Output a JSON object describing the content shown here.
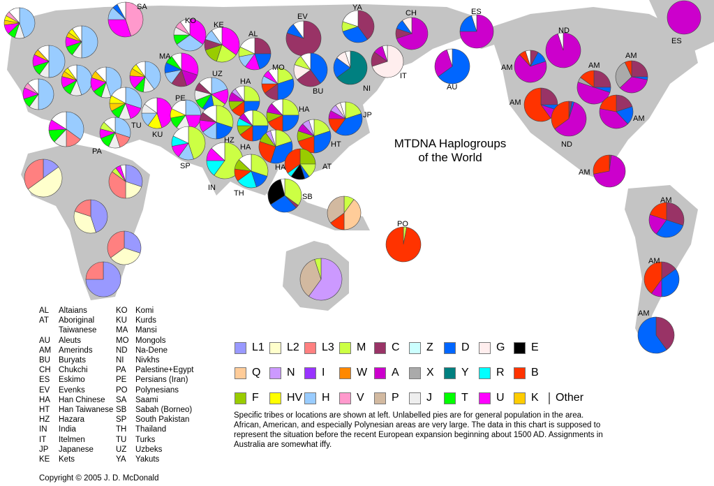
{
  "title_line1": "MTDNA Haplogroups",
  "title_line2": "of the World",
  "legend": [
    [
      {
        "code": "L1",
        "color": "#9999ff"
      },
      {
        "code": "L2",
        "color": "#ffffcc"
      },
      {
        "code": "L3",
        "color": "#ff8080"
      },
      {
        "code": "M",
        "color": "#ccff44"
      },
      {
        "code": "C",
        "color": "#993366"
      },
      {
        "code": "Z",
        "color": "#ccffff"
      },
      {
        "code": "D",
        "color": "#0066ff"
      },
      {
        "code": "G",
        "color": "#ffeeee"
      },
      {
        "code": "E",
        "color": "#000000"
      }
    ],
    [
      {
        "code": "Q",
        "color": "#ffcc99"
      },
      {
        "code": "N",
        "color": "#cc99ff"
      },
      {
        "code": "I",
        "color": "#9933ff"
      },
      {
        "code": "W",
        "color": "#ff8800"
      },
      {
        "code": "A",
        "color": "#cc00cc"
      },
      {
        "code": "X",
        "color": "#aaaaaa"
      },
      {
        "code": "Y",
        "color": "#008080"
      },
      {
        "code": "R",
        "color": "#00ffff"
      },
      {
        "code": "B",
        "color": "#ff3300"
      }
    ],
    [
      {
        "code": "F",
        "color": "#99cc00"
      },
      {
        "code": "HV",
        "color": "#ffff00"
      },
      {
        "code": "H",
        "color": "#99ccff"
      },
      {
        "code": "V",
        "color": "#ff99cc"
      },
      {
        "code": "P",
        "color": "#d2b9a0"
      },
      {
        "code": "J",
        "color": "#eeeeee"
      },
      {
        "code": "T",
        "color": "#00ff00"
      },
      {
        "code": "U",
        "color": "#ff00ff"
      },
      {
        "code": "K",
        "color": "#ffcc00"
      },
      {
        "code": "Other",
        "color": "#ffffff"
      }
    ]
  ],
  "abbreviations_col1": [
    [
      "AL",
      "Altaians"
    ],
    [
      "AT",
      "Aboriginal"
    ],
    [
      "",
      "Taiwanese"
    ],
    [
      "AU",
      "Aleuts"
    ],
    [
      "AM",
      "Amerinds"
    ],
    [
      "BU",
      "Buryats"
    ],
    [
      "CH",
      "Chukchi"
    ],
    [
      "ES",
      "Eskimo"
    ],
    [
      "EV",
      "Evenks"
    ],
    [
      "HA",
      "Han Chinese"
    ],
    [
      "HT",
      "Han Taiwanese"
    ],
    [
      "HZ",
      "Hazara"
    ],
    [
      "IN",
      "India"
    ],
    [
      "IT",
      "Itelmen"
    ],
    [
      "JP",
      "Japanese"
    ],
    [
      "KE",
      "Kets"
    ]
  ],
  "abbreviations_col2": [
    [
      "KO",
      "Komi"
    ],
    [
      "KU",
      "Kurds"
    ],
    [
      "MA",
      "Mansi"
    ],
    [
      "MO",
      "Mongols"
    ],
    [
      "ND",
      "Na-Dene"
    ],
    [
      "NI",
      "Nivkhs"
    ],
    [
      "PA",
      "Palestine+Egypt"
    ],
    [
      "PE",
      "Persians (Iran)"
    ],
    [
      "PO",
      "Polynesians"
    ],
    [
      "SA",
      "Saami"
    ],
    [
      "SB",
      "Sabah (Borneo)"
    ],
    [
      "SP",
      "South Pakistan"
    ],
    [
      "TH",
      "Thailand"
    ],
    [
      "TU",
      "Turks"
    ],
    [
      "UZ",
      "Uzbeks"
    ],
    [
      "YA",
      "Yakuts"
    ]
  ],
  "note": "Specific tribes or locations are shown at left. Unlabelled pies are for general population in the area. African, American, and especially Polynesian areas are very large. The data in this chart is supposed to represent the situation before the recent European expansion beginning about 1500 AD. Assignments in Australia are somewhat iffy.",
  "copyright": "Copyright © 2005 J. D. McDonald",
  "pies": [
    {
      "label": "",
      "slices": {
        "H": 0.45,
        "J": 0.1,
        "T": 0.08,
        "U": 0.1,
        "K": 0.05,
        "HV": 0.05,
        "V": 0.05,
        "Other": 0.12
      }
    },
    {
      "label": "SA",
      "slices": {
        "V": 0.45,
        "U": 0.3,
        "H": 0.12,
        "D": 0.05,
        "Other": 0.08
      }
    },
    {
      "label": "",
      "slices": {
        "H": 0.5,
        "J": 0.1,
        "T": 0.1,
        "U": 0.1,
        "K": 0.05,
        "HV": 0.05,
        "Other": 0.1
      }
    },
    {
      "label": "",
      "slices": {
        "H": 0.5,
        "J": 0.1,
        "T": 0.1,
        "U": 0.12,
        "K": 0.06,
        "Other": 0.12
      }
    },
    {
      "label": "",
      "slices": {
        "H": 0.45,
        "J": 0.12,
        "T": 0.1,
        "U": 0.12,
        "K": 0.06,
        "HV": 0.05,
        "Other": 0.1
      }
    },
    {
      "label": "",
      "slices": {
        "H": 0.45,
        "J": 0.1,
        "T": 0.1,
        "U": 0.15,
        "K": 0.08,
        "Other": 0.12
      }
    },
    {
      "label": "",
      "slices": {
        "H": 0.5,
        "J": 0.1,
        "T": 0.1,
        "U": 0.12,
        "V": 0.06,
        "Other": 0.12
      }
    },
    {
      "label": "",
      "slices": {
        "H": 0.4,
        "J": 0.12,
        "T": 0.1,
        "U": 0.14,
        "K": 0.08,
        "HV": 0.06,
        "Other": 0.1
      }
    },
    {
      "label": "MA",
      "slices": {
        "U": 0.3,
        "A": 0.15,
        "C": 0.15,
        "H": 0.12,
        "D": 0.1,
        "T": 0.08,
        "Other": 0.1
      }
    },
    {
      "label": "KO",
      "slices": {
        "U": 0.35,
        "H": 0.3,
        "T": 0.1,
        "J": 0.08,
        "V": 0.07,
        "Other": 0.1
      }
    },
    {
      "label": "KE",
      "slices": {
        "U": 0.35,
        "M": 0.2,
        "F": 0.15,
        "C": 0.1,
        "H": 0.1,
        "Other": 0.1
      }
    },
    {
      "label": "AL",
      "slices": {
        "C": 0.25,
        "D": 0.2,
        "U": 0.15,
        "H": 0.12,
        "M": 0.1,
        "Other": 0.18
      }
    },
    {
      "label": "UZ",
      "slices": {
        "H": 0.2,
        "U": 0.15,
        "M": 0.12,
        "D": 0.12,
        "T": 0.1,
        "J": 0.1,
        "C": 0.08,
        "Other": 0.13
      }
    },
    {
      "label": "TU",
      "slices": {
        "H": 0.3,
        "U": 0.15,
        "J": 0.12,
        "T": 0.1,
        "K": 0.08,
        "HV": 0.08,
        "Other": 0.17
      }
    },
    {
      "label": "KU",
      "slices": {
        "U": 0.45,
        "HV": 0.15,
        "H": 0.15,
        "J": 0.1,
        "Other": 0.15
      }
    },
    {
      "label": "PE",
      "slices": {
        "H": 0.25,
        "U": 0.2,
        "J": 0.15,
        "T": 0.12,
        "HV": 0.1,
        "Other": 0.18
      }
    },
    {
      "label": "HZ",
      "slices": {
        "M": 0.3,
        "D": 0.2,
        "H": 0.15,
        "U": 0.12,
        "C": 0.08,
        "Other": 0.15
      }
    },
    {
      "label": "PA",
      "slices": {
        "H": 0.3,
        "L3": 0.15,
        "J": 0.12,
        "T": 0.12,
        "U": 0.1,
        "M": 0.08,
        "Other": 0.13
      }
    },
    {
      "label": "",
      "slices": {
        "H": 0.35,
        "L3": 0.15,
        "J": 0.12,
        "T": 0.12,
        "U": 0.1,
        "Other": 0.16
      }
    },
    {
      "label": "SP",
      "slices": {
        "M": 0.45,
        "H": 0.15,
        "U": 0.12,
        "R": 0.1,
        "Other": 0.18
      }
    },
    {
      "label": "IN",
      "slices": {
        "M": 0.6,
        "R": 0.15,
        "U": 0.12,
        "Other": 0.13
      }
    },
    {
      "label": "MO",
      "slices": {
        "M": 0.2,
        "D": 0.3,
        "C": 0.15,
        "B": 0.1,
        "H": 0.08,
        "U": 0.07,
        "Other": 0.1
      }
    },
    {
      "label": "HA",
      "slices": {
        "M": 0.25,
        "D": 0.25,
        "B": 0.15,
        "F": 0.1,
        "A": 0.1,
        "N": 0.05,
        "Other": 0.1
      }
    },
    {
      "label": "HA",
      "slices": {
        "M": 0.25,
        "D": 0.25,
        "B": 0.18,
        "F": 0.1,
        "A": 0.1,
        "Other": 0.12
      }
    },
    {
      "label": "HA",
      "slices": {
        "M": 0.25,
        "D": 0.25,
        "B": 0.15,
        "F": 0.1,
        "R": 0.08,
        "A": 0.07,
        "Other": 0.1
      }
    },
    {
      "label": "HA",
      "slices": {
        "M": 0.2,
        "D": 0.35,
        "B": 0.25,
        "F": 0.1,
        "N": 0.05,
        "Other": 0.05
      }
    },
    {
      "label": "HT",
      "slices": {
        "M": 0.2,
        "D": 0.3,
        "B": 0.2,
        "F": 0.1,
        "A": 0.08,
        "N": 0.07,
        "Other": 0.05
      }
    },
    {
      "label": "JP",
      "slices": {
        "M": 0.2,
        "D": 0.4,
        "B": 0.15,
        "A": 0.08,
        "N": 0.07,
        "G": 0.05,
        "Other": 0.05
      }
    },
    {
      "label": "AT",
      "slices": {
        "F": 0.25,
        "M": 0.15,
        "D": 0.05,
        "E": 0.15,
        "R": 0.05,
        "B": 0.35
      }
    },
    {
      "label": "TH",
      "slices": {
        "M": 0.3,
        "D": 0.15,
        "R": 0.2,
        "B": 0.12,
        "F": 0.1,
        "Other": 0.13
      }
    },
    {
      "label": "SB",
      "slices": {
        "M": 0.35,
        "C": 0.03,
        "D": 0.28,
        "E": 0.3,
        "Other": 0.04
      }
    },
    {
      "label": "",
      "slices": {
        "M": 0.1,
        "Q": 0.4,
        "B": 0.15,
        "P": 0.35
      }
    },
    {
      "label": "PO",
      "slices": {
        "M": 0.03,
        "B": 0.97
      }
    },
    {
      "label": "",
      "slices": {
        "N": 0.6,
        "P": 0.35,
        "M": 0.05
      }
    },
    {
      "label": "EV",
      "slices": {
        "C": 0.8,
        "D": 0.1,
        "Other": 0.1
      }
    },
    {
      "label": "YA",
      "slices": {
        "C": 0.4,
        "D": 0.3,
        "M": 0.1,
        "Other": 0.2
      }
    },
    {
      "label": "BU",
      "slices": {
        "D": 0.4,
        "C": 0.25,
        "G": 0.15,
        "M": 0.1,
        "Other": 0.1
      }
    },
    {
      "label": "NI",
      "slices": {
        "Y": 0.65,
        "D": 0.2,
        "G": 0.1,
        "Other": 0.05
      }
    },
    {
      "label": "CH",
      "slices": {
        "A": 0.7,
        "C": 0.1,
        "D": 0.1,
        "G": 0.1
      }
    },
    {
      "label": "IT",
      "slices": {
        "G": 0.7,
        "C": 0.15,
        "A": 0.1,
        "Other": 0.05
      }
    },
    {
      "label": "ES",
      "slices": {
        "A": 0.75,
        "D": 0.2,
        "Other": 0.05
      }
    },
    {
      "label": "ES",
      "slices": {
        "A": 1.0
      }
    },
    {
      "label": "AU",
      "slices": {
        "D": 0.65,
        "A": 0.3,
        "Other": 0.05
      }
    },
    {
      "label": "ND",
      "slices": {
        "A": 0.95,
        "Other": 0.05
      }
    },
    {
      "label": "AM",
      "slices": {
        "C": 0.08,
        "D": 0.12,
        "A": 0.68,
        "B": 0.07,
        "Other": 0.05
      }
    },
    {
      "label": "AM",
      "slices": {
        "C": 0.25,
        "D": 0.05,
        "A": 0.1,
        "B": 0.6
      }
    },
    {
      "label": "AM",
      "slices": {
        "C": 0.25,
        "D": 0.05,
        "A": 0.5,
        "X": 0.05,
        "B": 0.15
      }
    },
    {
      "label": "AM",
      "slices": {
        "C": 0.25,
        "D": 0.03,
        "A": 0.35,
        "X": 0.3,
        "B": 0.07
      }
    },
    {
      "label": "AM",
      "slices": {
        "C": 0.2,
        "D": 0.18,
        "A": 0.4,
        "B": 0.22
      }
    },
    {
      "label": "ND",
      "slices": {
        "C": 0.03,
        "D": 0.02,
        "A": 0.6,
        "B": 0.35
      }
    },
    {
      "label": "AM",
      "slices": {
        "C": 0.02,
        "A": 0.7,
        "B": 0.28
      }
    },
    {
      "label": "AM",
      "slices": {
        "C": 0.3,
        "D": 0.3,
        "A": 0.2,
        "B": 0.2
      }
    },
    {
      "label": "AM",
      "slices": {
        "C": 0.15,
        "D": 0.35,
        "A": 0.1,
        "B": 0.4
      }
    },
    {
      "label": "AM",
      "slices": {
        "C": 0.4,
        "D": 0.6
      }
    },
    {
      "label": "",
      "slices": {
        "L1": 0.15,
        "L2": 0.5,
        "L3": 0.35
      }
    },
    {
      "label": "",
      "slices": {
        "L1": 0.3,
        "L2": 0.2,
        "L3": 0.35,
        "M": 0.05,
        "U": 0.05,
        "Other": 0.05
      }
    },
    {
      "label": "",
      "slices": {
        "L1": 0.45,
        "L2": 0.35,
        "L3": 0.2
      }
    },
    {
      "label": "",
      "slices": {
        "L1": 0.3,
        "L2": 0.35,
        "L3": 0.35
      }
    },
    {
      "label": "",
      "slices": {
        "L1": 0.75,
        "L3": 0.25
      }
    }
  ]
}
